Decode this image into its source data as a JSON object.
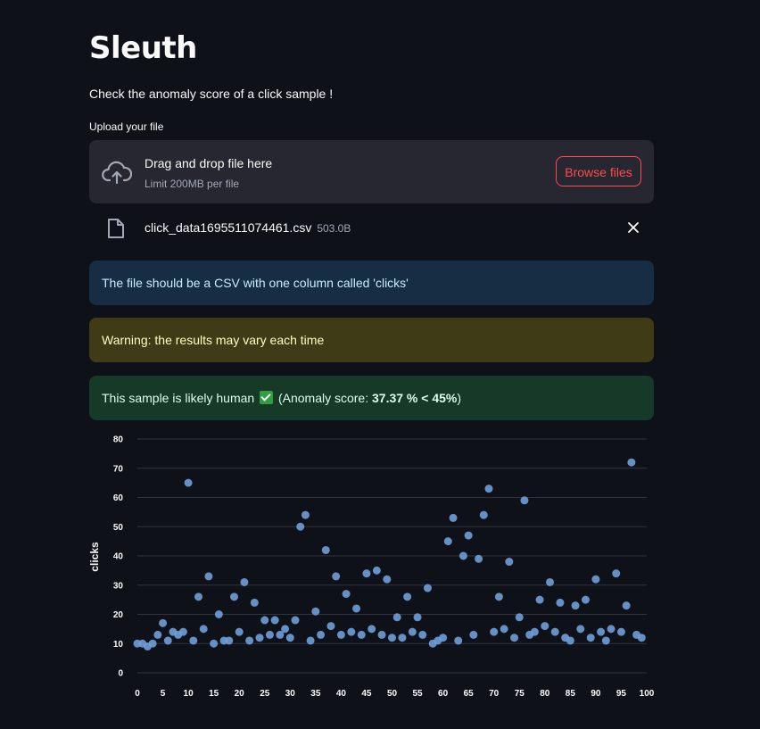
{
  "app": {
    "title": "Sleuth",
    "subtitle": "Check the anomaly score of a click sample !"
  },
  "uploader": {
    "label": "Upload your file",
    "drag_text": "Drag and drop file here",
    "limit_text": "Limit 200MB per file",
    "browse_label": "Browse files",
    "file_name": "click_data1695511074461.csv",
    "file_size": "503.0B"
  },
  "alerts": {
    "info": "The file should be a CSV with one column called 'clicks'",
    "warning": "Warning: the results may vary each time",
    "result_prefix": "This sample is likely human",
    "result_open": "(Anomaly score:",
    "result_score": "37.37 % < 45%",
    "result_close": ")"
  },
  "colors": {
    "accent": "#ff4b4b",
    "point": "#6f9fd8"
  },
  "chart_data": {
    "type": "scatter",
    "xlabel": "",
    "ylabel": "clicks",
    "xlim": [
      0,
      100
    ],
    "ylim": [
      0,
      80
    ],
    "xticks": [
      0,
      5,
      10,
      15,
      20,
      25,
      30,
      35,
      40,
      45,
      50,
      55,
      60,
      65,
      70,
      75,
      80,
      85,
      90,
      95,
      100
    ],
    "yticks": [
      0,
      10,
      20,
      30,
      40,
      50,
      60,
      70,
      80
    ],
    "grid": true,
    "x": [
      0,
      1,
      2,
      3,
      4,
      5,
      6,
      7,
      8,
      9,
      10,
      11,
      12,
      13,
      14,
      15,
      16,
      17,
      18,
      19,
      20,
      21,
      22,
      23,
      24,
      25,
      26,
      27,
      28,
      29,
      30,
      31,
      32,
      33,
      34,
      35,
      36,
      37,
      38,
      39,
      40,
      41,
      42,
      43,
      44,
      45,
      46,
      47,
      48,
      49,
      50,
      51,
      52,
      53,
      54,
      55,
      56,
      57,
      58,
      59,
      60,
      61,
      62,
      63,
      64,
      65,
      66,
      67,
      68,
      69,
      70,
      71,
      72,
      73,
      74,
      75,
      76,
      77,
      78,
      79,
      80,
      81,
      82,
      83,
      84,
      85,
      86,
      87,
      88,
      89,
      90,
      91,
      92,
      93,
      94,
      95,
      96,
      97,
      98,
      99
    ],
    "y": [
      10,
      10,
      9,
      10,
      13,
      17,
      11,
      14,
      13,
      14,
      65,
      11,
      26,
      15,
      33,
      10,
      20,
      11,
      11,
      26,
      14,
      31,
      11,
      24,
      12,
      18,
      13,
      18,
      13,
      15,
      12,
      18,
      50,
      54,
      11,
      21,
      13,
      42,
      16,
      33,
      13,
      27,
      14,
      22,
      13,
      34,
      15,
      35,
      13,
      32,
      12,
      19,
      12,
      26,
      14,
      19,
      13,
      29,
      10,
      11,
      12,
      45,
      53,
      11,
      40,
      47,
      13,
      39,
      54,
      63,
      14,
      26,
      15,
      38,
      12,
      19,
      59,
      13,
      14,
      25,
      16,
      31,
      14,
      24,
      12,
      11,
      23,
      15,
      25,
      12,
      32,
      14,
      11,
      15,
      34,
      14,
      23,
      72,
      13,
      12
    ]
  }
}
